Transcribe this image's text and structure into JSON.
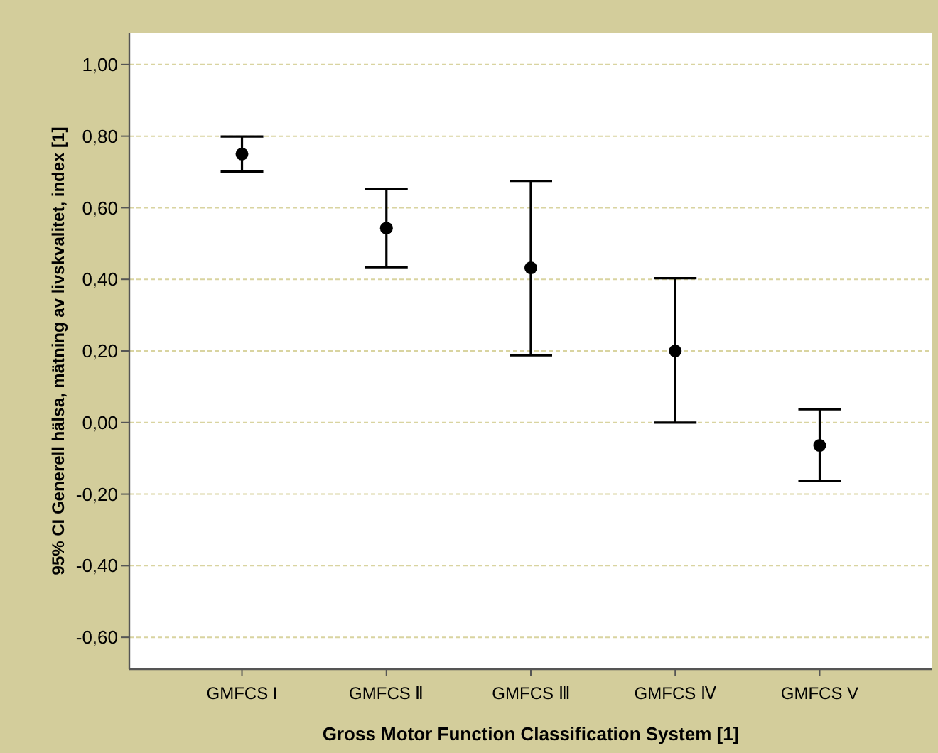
{
  "chart_data": {
    "type": "scatter",
    "xlabel": "Gross Motor Function Classification System [1]",
    "ylabel": "95% CI Generell hälsa, mätning av livskvalitet, index [1]",
    "categories": [
      "GMFCS I",
      "GMFCS Ⅱ",
      "GMFCS Ⅲ",
      "GMFCS Ⅳ",
      "GMFCS V"
    ],
    "series": [
      {
        "color": "#000000",
        "values": [
          0.75,
          0.543,
          0.432,
          0.2,
          -0.064
        ],
        "errors": [
          [
            0.701,
            0.799
          ],
          [
            0.434,
            0.652
          ],
          [
            0.188,
            0.675
          ],
          [
            0.0,
            0.403
          ],
          [
            -0.163,
            0.037
          ]
        ]
      }
    ],
    "ylim": [
      -0.689,
      1.089
    ],
    "yticks": [
      {
        "value": -0.6,
        "label": "-0,60"
      },
      {
        "value": -0.4,
        "label": "-0,40"
      },
      {
        "value": -0.2,
        "label": "-0,20"
      },
      {
        "value": 0,
        "label": "0,00"
      },
      {
        "value": 0.2,
        "label": "0,20"
      },
      {
        "value": 0.4,
        "label": "0,40"
      },
      {
        "value": 0.6,
        "label": "0,60"
      },
      {
        "value": 0.8,
        "label": "0,80"
      },
      {
        "value": 1,
        "label": "1,00"
      }
    ],
    "grid": "y",
    "marker": "circle"
  }
}
